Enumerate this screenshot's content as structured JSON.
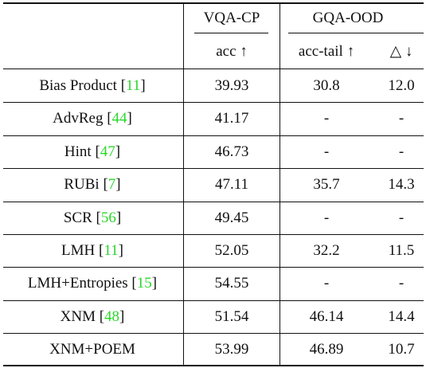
{
  "header": {
    "group1": "VQA-CP",
    "group2": "GQA-OOD",
    "sub_acc": "acc ↑",
    "sub_acc_tail": "acc-tail ↑",
    "sub_delta": "△ ↓"
  },
  "rows": [
    {
      "method": "Bias Product",
      "cite": "11",
      "acc": "39.93",
      "acc_tail": "30.8",
      "delta": "12.0"
    },
    {
      "method": "AdvReg",
      "cite": "44",
      "acc": "41.17",
      "acc_tail": "-",
      "delta": "-"
    },
    {
      "method": "Hint",
      "cite": "47",
      "acc": "46.73",
      "acc_tail": "-",
      "delta": "-"
    },
    {
      "method": "RUBi",
      "cite": "7",
      "acc": "47.11",
      "acc_tail": "35.7",
      "delta": "14.3"
    },
    {
      "method": "SCR",
      "cite": "56",
      "acc": "49.45",
      "acc_tail": "-",
      "delta": "-"
    },
    {
      "method": "LMH",
      "cite": "11",
      "acc": "52.05",
      "acc_tail": "32.2",
      "delta": "11.5"
    },
    {
      "method": "LMH+Entropies",
      "cite": "15",
      "acc": "54.55",
      "acc_tail": "-",
      "delta": "-"
    },
    {
      "method": "XNM",
      "cite": "48",
      "acc": "51.54",
      "acc_tail": "46.14",
      "delta": "14.4"
    },
    {
      "method": "XNM+POEM",
      "cite": "",
      "acc": "53.99",
      "acc_tail": "46.89",
      "delta": "10.7"
    }
  ]
}
